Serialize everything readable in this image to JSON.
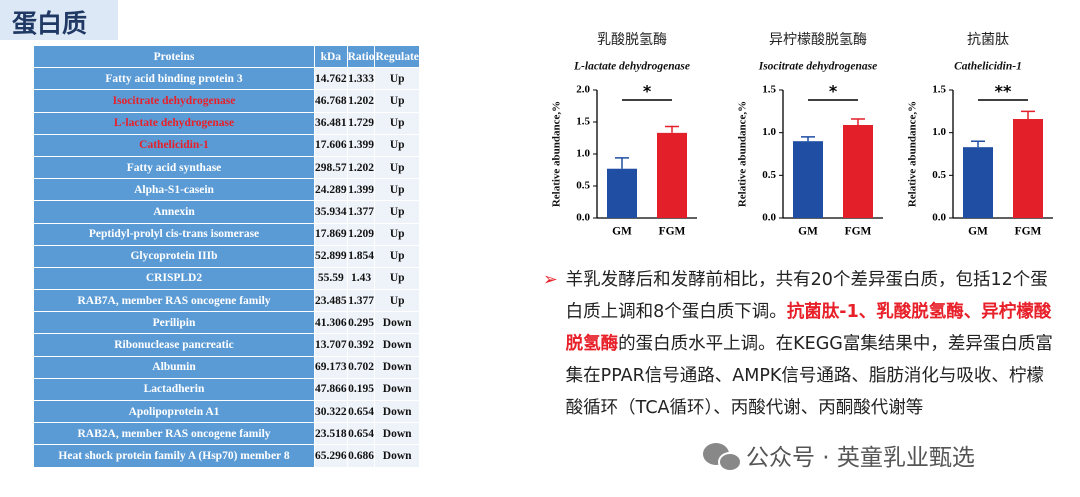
{
  "header": {
    "title": "蛋白质"
  },
  "table": {
    "columns": [
      "Proteins",
      "kDa",
      "Ratio",
      "Regulate"
    ],
    "rows": [
      [
        "Fatty acid binding protein 3",
        "14.762",
        "1.333",
        "Up"
      ],
      [
        "Isocitrate dehydrogenase",
        "46.768",
        "1.202",
        "Up"
      ],
      [
        "L-lactate dehydrogenase",
        "36.481",
        "1.729",
        "Up"
      ],
      [
        "Cathelicidin-1",
        "17.606",
        "1.399",
        "Up"
      ],
      [
        "Fatty acid synthase",
        "298.57",
        "1.202",
        "Up"
      ],
      [
        "Alpha-S1-casein",
        "24.289",
        "1.399",
        "Up"
      ],
      [
        "Annexin",
        "35.934",
        "1.377",
        "Up"
      ],
      [
        "Peptidyl-prolyl cis-trans isomerase",
        "17.869",
        "1.209",
        "Up"
      ],
      [
        "Glycoprotein IIIb",
        "52.899",
        "1.854",
        "Up"
      ],
      [
        "CRISPLD2",
        "55.59",
        "1.43",
        "Up"
      ],
      [
        "RAB7A, member RAS oncogene family",
        "23.485",
        "1.377",
        "Up"
      ],
      [
        "Perilipin",
        "41.306",
        "0.295",
        "Down"
      ],
      [
        "Ribonuclease pancreatic",
        "13.707",
        "0.392",
        "Down"
      ],
      [
        "Albumin",
        "69.173",
        "0.702",
        "Down"
      ],
      [
        "Lactadherin",
        "47.866",
        "0.195",
        "Down"
      ],
      [
        "Apolipoprotein A1",
        "30.322",
        "0.654",
        "Down"
      ],
      [
        "RAB2A, member RAS oncogene family",
        "23.518",
        "0.654",
        "Down"
      ],
      [
        "Heat shock protein family A (Hsp70) member 8",
        "65.296",
        "0.686",
        "Down"
      ]
    ],
    "highlighted_rows": [
      1,
      2,
      3
    ],
    "highlight_color": "#e8202a"
  },
  "chart_data": [
    {
      "type": "bar",
      "title": "乳酸脱氢酶",
      "subtitle": "L-lactate dehydrogenase",
      "ylabel": "Relative abundance,%",
      "categories": [
        "GM",
        "FGM"
      ],
      "values": [
        0.77,
        1.33
      ],
      "errors": [
        0.17,
        0.1
      ],
      "colors": [
        "#1f4ea3",
        "#e3202a"
      ],
      "significance": "*",
      "ylim": [
        0,
        2.0
      ],
      "yticks": [
        {
          "value": 0,
          "label": "0.0"
        },
        {
          "value": 0.5,
          "label": "0.5"
        },
        {
          "value": 1.0,
          "label": "1.0"
        },
        {
          "value": 1.5,
          "label": "1.5"
        },
        {
          "value": 2.0,
          "label": "2.0"
        }
      ]
    },
    {
      "type": "bar",
      "title": "异柠檬酸脱氢酶",
      "subtitle": "Isocitrate dehydrogenase",
      "ylabel": "Relative abundance,%",
      "categories": [
        "GM",
        "FGM"
      ],
      "values": [
        0.9,
        1.09
      ],
      "errors": [
        0.05,
        0.07
      ],
      "colors": [
        "#1f4ea3",
        "#e3202a"
      ],
      "significance": "*",
      "ylim": [
        0,
        1.5
      ],
      "yticks": [
        {
          "value": 0,
          "label": "0.0"
        },
        {
          "value": 0.5,
          "label": "0.5"
        },
        {
          "value": 1.0,
          "label": "1.0"
        },
        {
          "value": 1.5,
          "label": "1.5"
        }
      ]
    },
    {
      "type": "bar",
      "title": "抗菌肽",
      "subtitle": "Cathelicidin-1",
      "ylabel": "Relative abundance,%",
      "categories": [
        "GM",
        "FGM"
      ],
      "values": [
        0.83,
        1.16
      ],
      "errors": [
        0.07,
        0.09
      ],
      "colors": [
        "#1f4ea3",
        "#e3202a"
      ],
      "significance": "**",
      "ylim": [
        0,
        1.5
      ],
      "yticks": [
        {
          "value": 0,
          "label": "0.0"
        },
        {
          "value": 0.5,
          "label": "0.5"
        },
        {
          "value": 1.0,
          "label": "1.0"
        },
        {
          "value": 1.5,
          "label": "1.5"
        }
      ]
    }
  ],
  "summary": {
    "bullet": "➢",
    "segments": [
      {
        "text": "羊乳发酵后和发酵前相比，共有20个差异蛋白质，包括12个蛋白质上调和8个蛋白质下调。",
        "emphasis": false
      },
      {
        "text": "抗菌肽-1、乳酸脱氢酶、异柠檬酸脱氢酶",
        "emphasis": true
      },
      {
        "text": "的蛋白质水平上调。在KEGG富集结果中，差异蛋白质富集在PPAR信号通路、AMPK信号通路、脂肪消化与吸收、柠檬酸循环（TCA循环）、丙酸代谢、丙酮酸代谢等",
        "emphasis": false
      }
    ],
    "emphasis_color": "#e8202a"
  },
  "watermark": "公众号 · 英童乳业甄选"
}
